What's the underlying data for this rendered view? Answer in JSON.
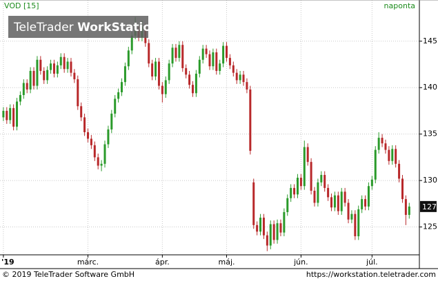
{
  "chart_data": {
    "type": "candlestick",
    "symbol": "VOD [15]",
    "interval": "naponta",
    "watermark": {
      "brand": "TeleTrader",
      "product": "WorkStation"
    },
    "footer": {
      "copyright": "© 2019 TeleTrader Software GmbH",
      "url": "https://workstation.teletrader.com"
    },
    "up_color": "#2a9a2a",
    "down_color": "#b8282a",
    "ylim": [
      122,
      148.1
    ],
    "yticks": [
      125,
      130,
      135,
      140,
      145
    ],
    "xlim": [
      -1,
      123
    ],
    "xticks": [
      {
        "value": 0,
        "label": "'19"
      },
      {
        "value": 25,
        "label": "márc."
      },
      {
        "value": 47,
        "label": "ápr."
      },
      {
        "value": 66,
        "label": "máj."
      },
      {
        "value": 88,
        "label": "jún."
      },
      {
        "value": 109,
        "label": "júl."
      }
    ],
    "grid": true,
    "last_value": {
      "value": 127.2,
      "label": "127"
    },
    "open": [
      136.8,
      137.5,
      136.5,
      137.8,
      135.8,
      138.5,
      139.2,
      140.5,
      139.8,
      141.8,
      140.2,
      143.0,
      141.8,
      140.8,
      141.9,
      142.6,
      141.5,
      142.4,
      143.3,
      142.0,
      142.8,
      141.6,
      140.9,
      138.0,
      136.8,
      135.2,
      134.5,
      133.8,
      132.5,
      131.6,
      131.8,
      133.9,
      135.5,
      137.2,
      138.8,
      139.5,
      140.6,
      142.3,
      144.0,
      145.6,
      146.2,
      145.4,
      146.5,
      144.8,
      142.6,
      141.2,
      142.8,
      140.2,
      139.3,
      140.8,
      142.6,
      144.3,
      143.2,
      144.6,
      142.1,
      141.4,
      140.3,
      139.4,
      141.5,
      143.0,
      144.2,
      143.6,
      142.3,
      143.8,
      141.8,
      142.6,
      144.5,
      143.2,
      142.4,
      141.6,
      140.8,
      141.4,
      140.6,
      139.8,
      129.8,
      125.2,
      124.5,
      126.0,
      124.1,
      123.0,
      125.3,
      123.6,
      125.4,
      124.4,
      126.6,
      128.1,
      129.2,
      128.5,
      130.3,
      129.4,
      133.6,
      132.0,
      128.9,
      127.6,
      129.8,
      130.6,
      129.2,
      128.2,
      127.1,
      128.4,
      126.7,
      128.8,
      127.6,
      125.8,
      126.4,
      124.0,
      126.9,
      128.0,
      127.2,
      129.4,
      130.1,
      133.3,
      134.6,
      134.0,
      133.3,
      132.1,
      133.4,
      131.8,
      130.2,
      128.0,
      126.3
    ],
    "high": [
      137.9,
      137.9,
      138.2,
      138.2,
      138.9,
      139.6,
      140.9,
      140.9,
      142.2,
      142.2,
      143.4,
      143.4,
      142.2,
      142.3,
      143.0,
      143.0,
      142.8,
      143.7,
      143.7,
      143.2,
      143.2,
      142.0,
      141.3,
      138.4,
      137.2,
      135.6,
      134.9,
      134.2,
      132.9,
      132.2,
      134.3,
      135.9,
      137.6,
      139.2,
      139.9,
      141.0,
      142.7,
      144.4,
      146.0,
      147.6,
      146.6,
      147.2,
      146.9,
      145.2,
      143.0,
      143.2,
      143.2,
      140.6,
      141.2,
      143.0,
      144.7,
      144.7,
      145.0,
      145.0,
      142.5,
      141.8,
      140.7,
      141.9,
      143.4,
      144.6,
      144.6,
      144.0,
      144.2,
      144.2,
      143.0,
      144.9,
      144.9,
      143.6,
      142.8,
      142.0,
      141.8,
      141.8,
      141.0,
      140.2,
      130.2,
      125.6,
      126.4,
      126.4,
      124.5,
      125.7,
      125.7,
      125.8,
      125.8,
      127.0,
      128.5,
      129.6,
      129.6,
      130.7,
      130.7,
      134.3,
      134.0,
      132.4,
      129.3,
      130.2,
      131.0,
      131.0,
      129.6,
      128.6,
      128.8,
      128.8,
      129.2,
      129.2,
      128.0,
      126.8,
      126.8,
      127.3,
      128.4,
      128.4,
      129.8,
      130.5,
      133.7,
      135.2,
      135.0,
      134.4,
      133.7,
      133.8,
      133.8,
      132.2,
      130.6,
      128.4,
      127.6
    ],
    "low": [
      136.4,
      136.1,
      136.1,
      135.4,
      135.4,
      138.1,
      138.8,
      139.4,
      139.4,
      139.8,
      139.8,
      141.4,
      140.4,
      140.4,
      141.5,
      141.1,
      141.1,
      142.0,
      141.6,
      141.6,
      141.2,
      140.5,
      137.6,
      136.4,
      134.8,
      134.1,
      133.4,
      132.1,
      131.2,
      131.0,
      131.4,
      133.5,
      135.1,
      136.8,
      138.4,
      139.1,
      140.2,
      141.9,
      143.6,
      145.2,
      145.0,
      145.0,
      144.4,
      142.2,
      140.8,
      140.8,
      139.8,
      138.4,
      138.9,
      140.4,
      142.2,
      142.8,
      142.8,
      141.7,
      141.0,
      139.9,
      139.0,
      139.0,
      141.1,
      142.6,
      143.2,
      141.9,
      141.9,
      141.4,
      141.4,
      142.2,
      142.8,
      142.0,
      141.2,
      140.4,
      140.4,
      140.2,
      139.4,
      132.8,
      124.8,
      124.1,
      124.1,
      123.7,
      122.4,
      122.6,
      123.2,
      123.2,
      124.0,
      124.0,
      126.2,
      127.7,
      128.1,
      128.1,
      129.0,
      129.0,
      131.6,
      128.5,
      127.2,
      127.2,
      129.4,
      128.8,
      127.8,
      126.7,
      126.7,
      126.3,
      126.3,
      127.2,
      125.4,
      125.4,
      123.6,
      123.6,
      126.5,
      126.8,
      126.8,
      129.0,
      129.7,
      132.9,
      133.6,
      132.9,
      131.7,
      131.7,
      131.4,
      129.8,
      127.6,
      125.2,
      125.9
    ],
    "close": [
      137.5,
      136.5,
      137.8,
      135.8,
      138.5,
      139.2,
      140.5,
      139.8,
      141.8,
      140.2,
      143.0,
      141.8,
      140.8,
      141.9,
      142.6,
      141.5,
      142.4,
      143.3,
      142.0,
      142.8,
      141.6,
      140.9,
      138.0,
      136.8,
      135.2,
      134.5,
      133.8,
      132.5,
      131.6,
      131.8,
      133.9,
      135.5,
      137.2,
      138.8,
      139.5,
      140.6,
      142.3,
      144.0,
      145.6,
      146.2,
      145.4,
      146.5,
      144.8,
      142.6,
      141.2,
      142.8,
      140.2,
      139.3,
      140.8,
      142.6,
      144.3,
      143.2,
      144.6,
      142.1,
      141.4,
      140.3,
      139.4,
      141.5,
      143.0,
      144.2,
      143.6,
      142.3,
      143.8,
      141.8,
      142.6,
      144.5,
      143.2,
      142.4,
      141.6,
      140.8,
      141.4,
      140.6,
      139.8,
      133.2,
      125.2,
      124.5,
      126.0,
      124.1,
      123.0,
      125.3,
      123.6,
      125.4,
      124.4,
      126.6,
      128.1,
      129.2,
      128.5,
      130.3,
      129.4,
      133.6,
      132.0,
      128.9,
      127.6,
      129.8,
      130.6,
      129.2,
      128.2,
      127.1,
      128.4,
      126.7,
      128.8,
      127.6,
      125.8,
      126.4,
      124.0,
      126.9,
      128.0,
      127.2,
      129.4,
      130.1,
      133.3,
      134.6,
      134.0,
      133.3,
      132.1,
      133.4,
      131.8,
      130.2,
      128.0,
      126.3,
      127.2
    ]
  }
}
